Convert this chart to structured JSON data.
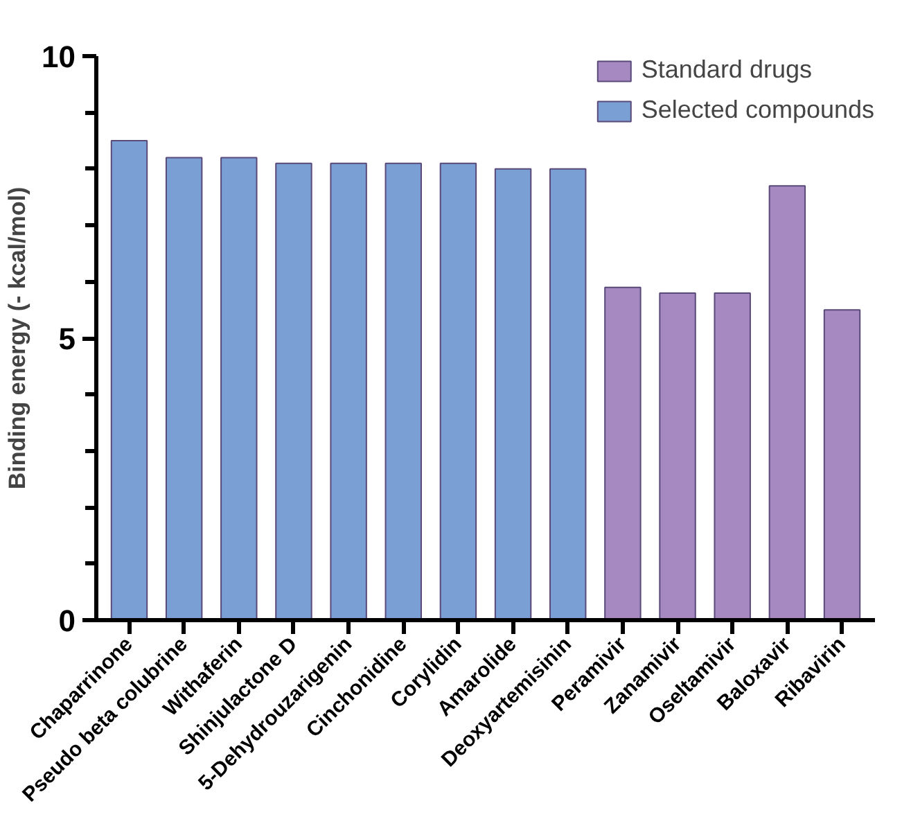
{
  "chart_data": {
    "type": "bar",
    "ylabel": "Binding energy (- kcal/mol)",
    "categories": [
      "Chaparrinone",
      "Pseudo beta colubrine",
      "Withaferin",
      "Shinjulactone D",
      "5-Dehydrouzarigenin",
      "Cinchonidine",
      "Corylidin",
      "Amarolide",
      "Deoxyartemisinin",
      "Peramivir",
      "Zanamivir",
      "Oseltamivir",
      "Baloxavir",
      "Ribavirin"
    ],
    "series": [
      {
        "name": "Standard drugs",
        "color": "#a589c0",
        "values": [
          null,
          null,
          null,
          null,
          null,
          null,
          null,
          null,
          null,
          5.9,
          5.8,
          5.8,
          7.7,
          5.5
        ]
      },
      {
        "name": "Selected compounds",
        "color": "#7a9fd4",
        "values": [
          8.5,
          8.2,
          8.2,
          8.1,
          8.1,
          8.1,
          8.1,
          8.0,
          8.0,
          null,
          null,
          null,
          null,
          null
        ]
      }
    ],
    "ylim": [
      0,
      10
    ],
    "yticks": [
      0,
      {
        "value": 1,
        "label": null
      },
      {
        "value": 2,
        "label": null
      },
      {
        "value": 3,
        "label": null
      },
      {
        "value": 4,
        "label": null
      },
      5,
      {
        "value": 6,
        "label": null
      },
      {
        "value": 7,
        "label": null
      },
      {
        "value": 8,
        "label": null
      },
      {
        "value": 9,
        "label": null
      },
      10
    ],
    "grid": false,
    "legend": "top right"
  }
}
